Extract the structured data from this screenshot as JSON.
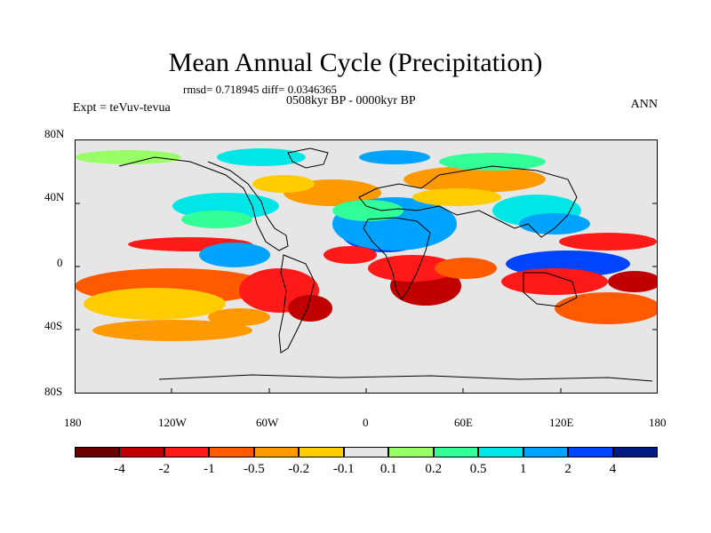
{
  "header": {
    "title": "Mean Annual Cycle (Precipitation)",
    "stats": "rmsd= 0.718945  diff= 0.0346365",
    "period": "0508kyr BP - 0000kyr BP",
    "experiment": "Expt = teVuv-tevua",
    "season": "ANN"
  },
  "axes": {
    "lat_labels": [
      "80N",
      "40N",
      "0",
      "40S",
      "80S"
    ],
    "lon_labels": [
      "180",
      "120W",
      "60W",
      "0",
      "60E",
      "120E",
      "180"
    ]
  },
  "legend": {
    "colors": [
      "#6b0000",
      "#c00000",
      "#ff1a1a",
      "#ff5a00",
      "#ff9900",
      "#ffcc00",
      "#e6e6e6",
      "#99ff66",
      "#33ff99",
      "#00e6e6",
      "#00a3ff",
      "#0044ff",
      "#001a80"
    ],
    "labels": [
      "-4",
      "-2",
      "-1",
      "-0.5",
      "-0.2",
      "-0.1",
      "0.1",
      "0.2",
      "0.5",
      "1",
      "2",
      "4"
    ]
  }
}
